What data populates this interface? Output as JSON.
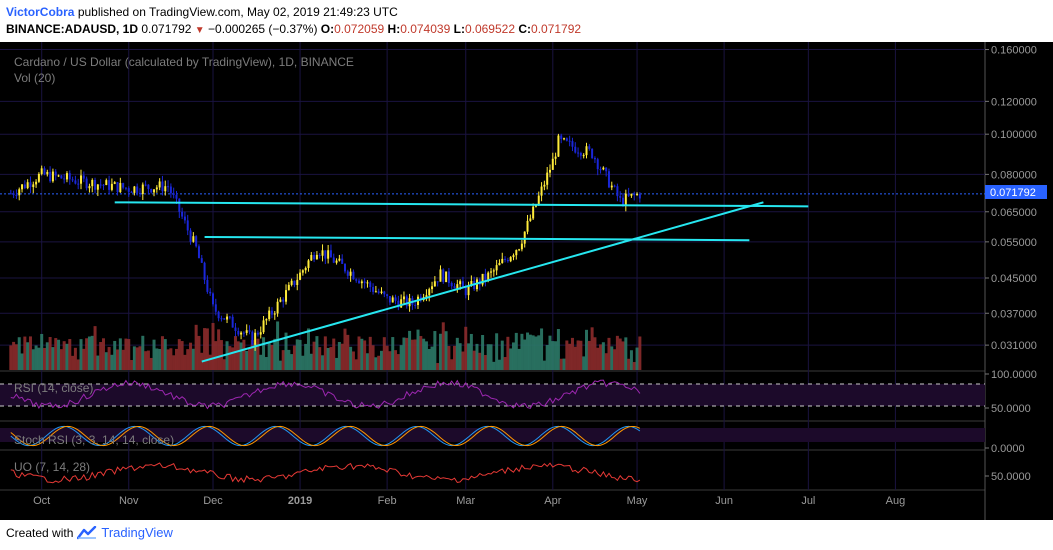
{
  "header": {
    "author": "VictorCobra",
    "published_text": "published on TradingView.com, May 02, 2019 21:49:23 UTC",
    "symbol": "BINANCE:ADAUSD, 1D",
    "last": "0.071792",
    "change": "−0.000265 (−0.37%)",
    "o_label": "O:",
    "o_value": "0.072059",
    "h_label": "H:",
    "h_value": "0.074039",
    "l_label": "L:",
    "l_value": "0.069522",
    "c_label": "C:",
    "c_value": "0.071792"
  },
  "chart": {
    "title": "Cardano / US Dollar (calculated by TradingView), 1D, BINANCE",
    "vol_label": "Vol (20)",
    "rsi_label": "RSI (14, close)",
    "stoch_label": "Stoch RSI (3, 3, 14, 14, close)",
    "uo_label": "UO (7, 14, 28)",
    "last_price_tag": "0.071792",
    "price_ticks": [
      "0.160000",
      "0.120000",
      "0.100000",
      "0.080000",
      "0.071792",
      "0.065000",
      "0.055000",
      "0.045000",
      "0.037000",
      "0.031000"
    ],
    "rsi_ticks": [
      "100.0000",
      "50.0000"
    ],
    "stoch_ticks": [
      "0.0000"
    ],
    "uo_ticks": [
      "50.0000"
    ],
    "time_ticks": [
      "Oct",
      "Nov",
      "Dec",
      "2019",
      "Feb",
      "Mar",
      "Apr",
      "May",
      "Jun",
      "Jul",
      "Aug"
    ],
    "colors": {
      "up": "#ffeb3b",
      "down": "#1a27d8",
      "trend": "#26e7f0",
      "vol_up": "#2c7a68",
      "vol_down": "#8c2b2b",
      "rsi": "#9c27b0",
      "stoch_k": "#2196f3",
      "stoch_d": "#ff9800",
      "uo": "#e53935"
    }
  },
  "footer": {
    "created_with": "Created with",
    "brand": "TradingView"
  },
  "chart_data": {
    "type": "candlestick",
    "title": "Cardano / US Dollar (calculated by TradingView), 1D, BINANCE",
    "y_scale": "log",
    "ylim": [
      0.027,
      0.165
    ],
    "x": [
      "2018-09-20",
      "2018-10-01",
      "2018-10-15",
      "2018-11-01",
      "2018-11-15",
      "2018-11-25",
      "2018-12-01",
      "2018-12-10",
      "2018-12-15",
      "2019-01-01",
      "2019-01-07",
      "2019-01-20",
      "2019-02-01",
      "2019-02-10",
      "2019-02-20",
      "2019-03-01",
      "2019-03-10",
      "2019-03-20",
      "2019-03-25",
      "2019-04-01",
      "2019-04-03",
      "2019-04-15",
      "2019-04-25",
      "2019-05-02"
    ],
    "close": [
      0.072,
      0.08,
      0.077,
      0.074,
      0.075,
      0.053,
      0.038,
      0.034,
      0.032,
      0.046,
      0.053,
      0.046,
      0.04,
      0.039,
      0.046,
      0.042,
      0.046,
      0.054,
      0.065,
      0.086,
      0.096,
      0.09,
      0.069,
      0.071792
    ],
    "trendlines": [
      {
        "from": [
          "2018-10-27",
          0.0685
        ],
        "to": [
          "2019-07-01",
          0.067
        ]
      },
      {
        "from": [
          "2018-11-28",
          0.0565
        ],
        "to": [
          "2019-06-10",
          0.0555
        ]
      },
      {
        "from": [
          "2018-11-27",
          0.0283
        ],
        "to": [
          "2019-06-15",
          0.0685
        ]
      }
    ],
    "last_price": 0.071792,
    "rsi_ylim": [
      0,
      100
    ],
    "uo_ref": 50
  }
}
